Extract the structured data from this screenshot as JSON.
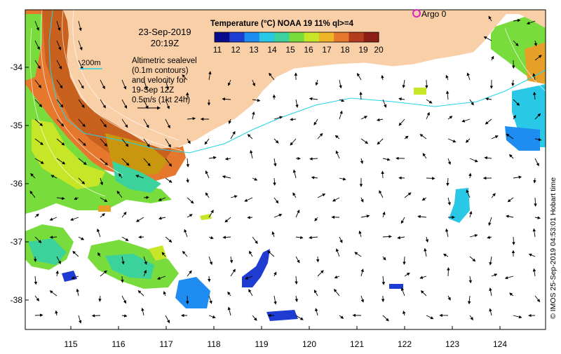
{
  "map": {
    "title_date": "23-Sep-2019",
    "title_time": "20:19Z",
    "altimetry_note": [
      "Altimetric sealevel",
      "(0.1m contours)",
      "and velocity for",
      "19-Sep 12Z",
      "0.5m/s (1kt 24h)"
    ],
    "isobath_label": "200m",
    "colorbar": {
      "title": "Temperature (°C) NOAA 19 11% ql>=4",
      "ticks": [
        "11",
        "12",
        "13",
        "14",
        "15",
        "16",
        "17",
        "18",
        "19",
        "20"
      ],
      "colors": [
        "#0a0a8c",
        "#1e3cd2",
        "#1e8cf0",
        "#28c8e6",
        "#3cd29b",
        "#78dc3c",
        "#c8e628",
        "#f0b428",
        "#e6782d",
        "#b43c1e",
        "#8c1e14"
      ]
    },
    "argo_label": "Argo 0",
    "credit": "© IMOS 25-Sep-2019 04:53:01 Hobart time",
    "lat_labels": [
      "-34",
      "-35",
      "-36",
      "-37",
      "-38"
    ],
    "lon_labels": [
      "115",
      "116",
      "117",
      "118",
      "119",
      "120",
      "121",
      "122",
      "123",
      "124"
    ],
    "colors": {
      "land": "#f9cfa8",
      "isobath": "#22d3e6",
      "argo_marker": "#e020c8",
      "background": "#ffffff"
    }
  }
}
